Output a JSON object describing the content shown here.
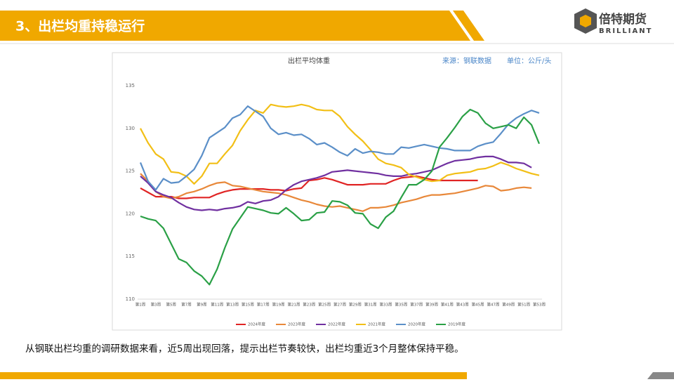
{
  "header": {
    "title": "3、出栏均重持稳运行"
  },
  "logo": {
    "name": "倍特期货",
    "sub": "BRILLIANT"
  },
  "caption": "从钢联出栏均重的调研数据来看，近5周出现回落，提示出栏节奏较快，出栏均重近3个月整体保持平稳。",
  "chart_data": {
    "type": "line",
    "title": "出栏平均体重",
    "source": "来源：钢联数据",
    "unit": "单位：公斤/头",
    "categories": [
      "第1周",
      null,
      "第3周",
      null,
      "第5周",
      null,
      "第7周",
      null,
      "第9周",
      null,
      "第11周",
      null,
      "第13周",
      null,
      "第15周",
      null,
      "第17周",
      null,
      "第19周",
      null,
      "第21周",
      null,
      "第23周",
      null,
      "第25周",
      null,
      "第27周",
      null,
      "第29周",
      null,
      "第31周",
      null,
      "第33周",
      null,
      "第35周",
      null,
      "第37周",
      null,
      "第39周",
      null,
      "第41周",
      null,
      "第43周",
      null,
      "第45周",
      null,
      "第47周",
      null,
      "第49周",
      null,
      "第51周",
      null,
      "第53周"
    ],
    "ylim": [
      110,
      135
    ],
    "yticks": [
      110,
      115,
      120,
      125,
      130,
      135
    ],
    "grid": false,
    "legend": "bottom",
    "series": [
      {
        "name": "2024年度",
        "color": "#e02424",
        "values": [
          123.0,
          122.5,
          122.0,
          122.0,
          122.0,
          121.8,
          121.8,
          121.9,
          121.9,
          121.9,
          122.3,
          122.6,
          122.8,
          122.9,
          122.9,
          122.9,
          122.9,
          122.8,
          122.8,
          122.7,
          122.9,
          123.0,
          123.9,
          124.0,
          124.2,
          124.0,
          123.7,
          123.4,
          123.4,
          123.4,
          123.5,
          123.5,
          123.5,
          123.9,
          124.2,
          124.3,
          124.4,
          124.2,
          124.0,
          123.9,
          123.9,
          123.9,
          123.9,
          123.9,
          123.9,
          null,
          null,
          null,
          null,
          null,
          null,
          null,
          null
        ]
      },
      {
        "name": "2023年度",
        "color": "#e8883a",
        "values": [
          124.7,
          123.8,
          122.6,
          122.0,
          121.8,
          122.0,
          122.4,
          122.6,
          122.9,
          123.3,
          123.6,
          123.7,
          123.3,
          123.2,
          123.0,
          122.8,
          122.6,
          122.5,
          122.4,
          122.2,
          121.9,
          121.6,
          121.4,
          121.1,
          120.9,
          120.8,
          120.9,
          120.7,
          120.5,
          120.3,
          120.7,
          120.7,
          120.8,
          121.0,
          121.3,
          121.5,
          121.7,
          122.0,
          122.2,
          122.2,
          122.3,
          122.4,
          122.6,
          122.8,
          123.0,
          123.3,
          123.2,
          122.7,
          122.8,
          123.0,
          123.1,
          123.0,
          null
        ]
      },
      {
        "name": "2022年度",
        "color": "#7030a0",
        "values": [
          124.4,
          123.6,
          122.6,
          122.2,
          121.9,
          121.3,
          120.8,
          120.5,
          120.4,
          120.5,
          120.4,
          120.6,
          120.7,
          120.9,
          121.4,
          121.2,
          121.5,
          121.6,
          122.0,
          122.8,
          123.4,
          123.8,
          124.0,
          124.2,
          124.5,
          124.9,
          125.0,
          125.1,
          125.0,
          124.9,
          124.8,
          124.7,
          124.5,
          124.4,
          124.4,
          124.6,
          124.7,
          124.9,
          125.1,
          125.5,
          125.9,
          126.2,
          126.3,
          126.4,
          126.6,
          126.7,
          126.7,
          126.4,
          126.0,
          126.0,
          125.9,
          125.4,
          null
        ]
      },
      {
        "name": "2021年度",
        "color": "#f2bf16",
        "values": [
          130.0,
          128.3,
          127.0,
          126.4,
          124.9,
          124.8,
          124.4,
          123.5,
          124.4,
          125.9,
          125.9,
          127.0,
          128.0,
          129.7,
          131.0,
          132.1,
          131.8,
          132.8,
          132.6,
          132.5,
          132.6,
          132.8,
          132.6,
          132.2,
          132.1,
          132.1,
          131.4,
          130.2,
          129.3,
          128.5,
          127.5,
          126.4,
          125.9,
          125.7,
          125.4,
          124.6,
          124.3,
          124.0,
          123.8,
          123.9,
          124.5,
          124.7,
          124.8,
          124.9,
          125.2,
          125.3,
          125.6,
          126.0,
          125.7,
          125.3,
          125.0,
          124.7,
          124.5
        ]
      },
      {
        "name": "2020年度",
        "color": "#5b8fc8",
        "values": [
          126.0,
          123.8,
          122.8,
          124.1,
          123.6,
          123.7,
          124.4,
          125.2,
          126.8,
          128.9,
          129.5,
          130.1,
          131.2,
          131.6,
          132.6,
          132.0,
          131.4,
          130.0,
          129.3,
          129.5,
          129.2,
          129.3,
          128.8,
          128.1,
          128.3,
          127.8,
          127.2,
          126.8,
          127.6,
          127.1,
          127.3,
          127.2,
          127.0,
          127.0,
          127.8,
          127.7,
          127.9,
          128.1,
          127.9,
          127.7,
          127.6,
          127.4,
          127.4,
          127.4,
          127.9,
          128.2,
          128.4,
          129.4,
          130.5,
          131.2,
          131.7,
          132.1,
          131.8
        ]
      },
      {
        "name": "2019年度",
        "color": "#2aa046",
        "values": [
          119.7,
          119.4,
          119.2,
          118.3,
          116.5,
          114.7,
          114.3,
          113.3,
          112.7,
          111.7,
          113.5,
          116.0,
          118.2,
          119.5,
          120.8,
          120.6,
          120.4,
          120.1,
          120.0,
          120.7,
          120.0,
          119.2,
          119.3,
          120.1,
          120.2,
          121.5,
          121.4,
          121.0,
          120.1,
          120.0,
          118.8,
          118.3,
          119.6,
          120.3,
          121.9,
          123.4,
          123.4,
          124.0,
          125.0,
          127.8,
          128.9,
          130.1,
          131.4,
          132.2,
          131.8,
          130.6,
          130.0,
          130.2,
          130.4,
          130.0,
          131.3,
          130.4,
          128.2
        ]
      }
    ]
  }
}
